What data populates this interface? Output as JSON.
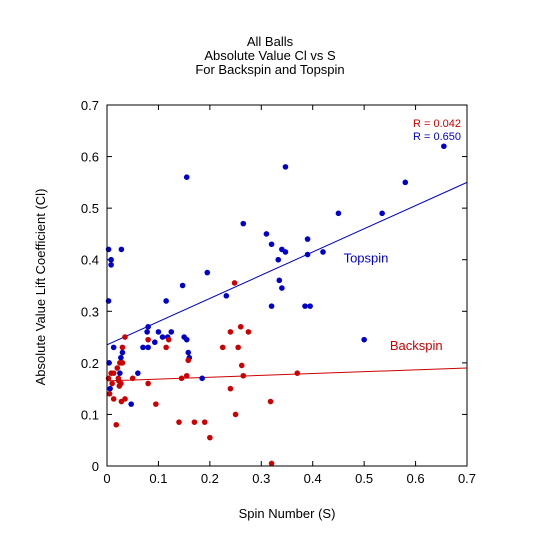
{
  "chart_data": {
    "type": "scatter",
    "title_lines": [
      "All Balls",
      "Absolute Value Cl vs S",
      "For Backspin and Topspin"
    ],
    "xlabel": "Spin Number (S)",
    "ylabel": "Absolute Value Lift Coefficient (Cl)",
    "xlim": [
      0,
      0.7
    ],
    "ylim": [
      0,
      0.7
    ],
    "xticks": [
      "0",
      "0.1",
      "0.2",
      "0.3",
      "0.4",
      "0.5",
      "0.6",
      "0.7"
    ],
    "yticks": [
      "0",
      "0.1",
      "0.2",
      "0.3",
      "0.4",
      "0.5",
      "0.6",
      "0.7"
    ],
    "grid": false,
    "series": [
      {
        "name": "Topspin",
        "color": "#0000cc",
        "fit": {
          "x": [
            0,
            0.7
          ],
          "y": [
            0.235,
            0.55
          ]
        },
        "r_label": "R = 0.650",
        "points": [
          [
            0.003,
            0.42
          ],
          [
            0.003,
            0.32
          ],
          [
            0.008,
            0.4
          ],
          [
            0.008,
            0.39
          ],
          [
            0.028,
            0.42
          ],
          [
            0.004,
            0.2
          ],
          [
            0.006,
            0.15
          ],
          [
            0.013,
            0.23
          ],
          [
            0.025,
            0.18
          ],
          [
            0.027,
            0.21
          ],
          [
            0.03,
            0.22
          ],
          [
            0.047,
            0.12
          ],
          [
            0.06,
            0.18
          ],
          [
            0.07,
            0.23
          ],
          [
            0.078,
            0.26
          ],
          [
            0.08,
            0.23
          ],
          [
            0.08,
            0.27
          ],
          [
            0.093,
            0.24
          ],
          [
            0.1,
            0.26
          ],
          [
            0.108,
            0.25
          ],
          [
            0.115,
            0.32
          ],
          [
            0.118,
            0.25
          ],
          [
            0.125,
            0.26
          ],
          [
            0.147,
            0.35
          ],
          [
            0.15,
            0.25
          ],
          [
            0.155,
            0.245
          ],
          [
            0.155,
            0.56
          ],
          [
            0.158,
            0.22
          ],
          [
            0.16,
            0.21
          ],
          [
            0.185,
            0.17
          ],
          [
            0.195,
            0.375
          ],
          [
            0.232,
            0.33
          ],
          [
            0.265,
            0.47
          ],
          [
            0.31,
            0.45
          ],
          [
            0.32,
            0.31
          ],
          [
            0.32,
            0.43
          ],
          [
            0.333,
            0.4
          ],
          [
            0.335,
            0.36
          ],
          [
            0.34,
            0.345
          ],
          [
            0.34,
            0.42
          ],
          [
            0.347,
            0.415
          ],
          [
            0.347,
            0.58
          ],
          [
            0.385,
            0.31
          ],
          [
            0.39,
            0.44
          ],
          [
            0.39,
            0.41
          ],
          [
            0.395,
            0.31
          ],
          [
            0.42,
            0.415
          ],
          [
            0.45,
            0.49
          ],
          [
            0.5,
            0.245
          ],
          [
            0.535,
            0.49
          ],
          [
            0.58,
            0.55
          ],
          [
            0.655,
            0.62
          ]
        ]
      },
      {
        "name": "Backspin",
        "color": "#cc0000",
        "fit": {
          "x": [
            0,
            0.7
          ],
          "y": [
            0.165,
            0.19
          ]
        },
        "r_label": "R = 0.042",
        "points": [
          [
            0.003,
            0.17
          ],
          [
            0.005,
            0.14
          ],
          [
            0.008,
            0.18
          ],
          [
            0.01,
            0.16
          ],
          [
            0.013,
            0.18
          ],
          [
            0.013,
            0.13
          ],
          [
            0.018,
            0.08
          ],
          [
            0.02,
            0.19
          ],
          [
            0.022,
            0.17
          ],
          [
            0.023,
            0.165
          ],
          [
            0.024,
            0.155
          ],
          [
            0.025,
            0.2
          ],
          [
            0.027,
            0.16
          ],
          [
            0.028,
            0.125
          ],
          [
            0.03,
            0.23
          ],
          [
            0.03,
            0.2
          ],
          [
            0.035,
            0.25
          ],
          [
            0.035,
            0.13
          ],
          [
            0.05,
            0.17
          ],
          [
            0.08,
            0.245
          ],
          [
            0.08,
            0.16
          ],
          [
            0.095,
            0.12
          ],
          [
            0.115,
            0.23
          ],
          [
            0.12,
            0.245
          ],
          [
            0.14,
            0.085
          ],
          [
            0.145,
            0.17
          ],
          [
            0.155,
            0.175
          ],
          [
            0.158,
            0.205
          ],
          [
            0.17,
            0.085
          ],
          [
            0.19,
            0.085
          ],
          [
            0.2,
            0.055
          ],
          [
            0.225,
            0.23
          ],
          [
            0.24,
            0.26
          ],
          [
            0.24,
            0.15
          ],
          [
            0.248,
            0.355
          ],
          [
            0.25,
            0.1
          ],
          [
            0.255,
            0.23
          ],
          [
            0.26,
            0.27
          ],
          [
            0.262,
            0.195
          ],
          [
            0.265,
            0.175
          ],
          [
            0.275,
            0.26
          ],
          [
            0.318,
            0.125
          ],
          [
            0.32,
            0.005
          ],
          [
            0.37,
            0.18
          ]
        ]
      }
    ],
    "annotations": [
      {
        "text": "Topspin",
        "color": "#0000cc",
        "x": 0.46,
        "y": 0.395
      },
      {
        "text": "Backspin",
        "color": "#cc0000",
        "x": 0.55,
        "y": 0.225
      }
    ]
  }
}
